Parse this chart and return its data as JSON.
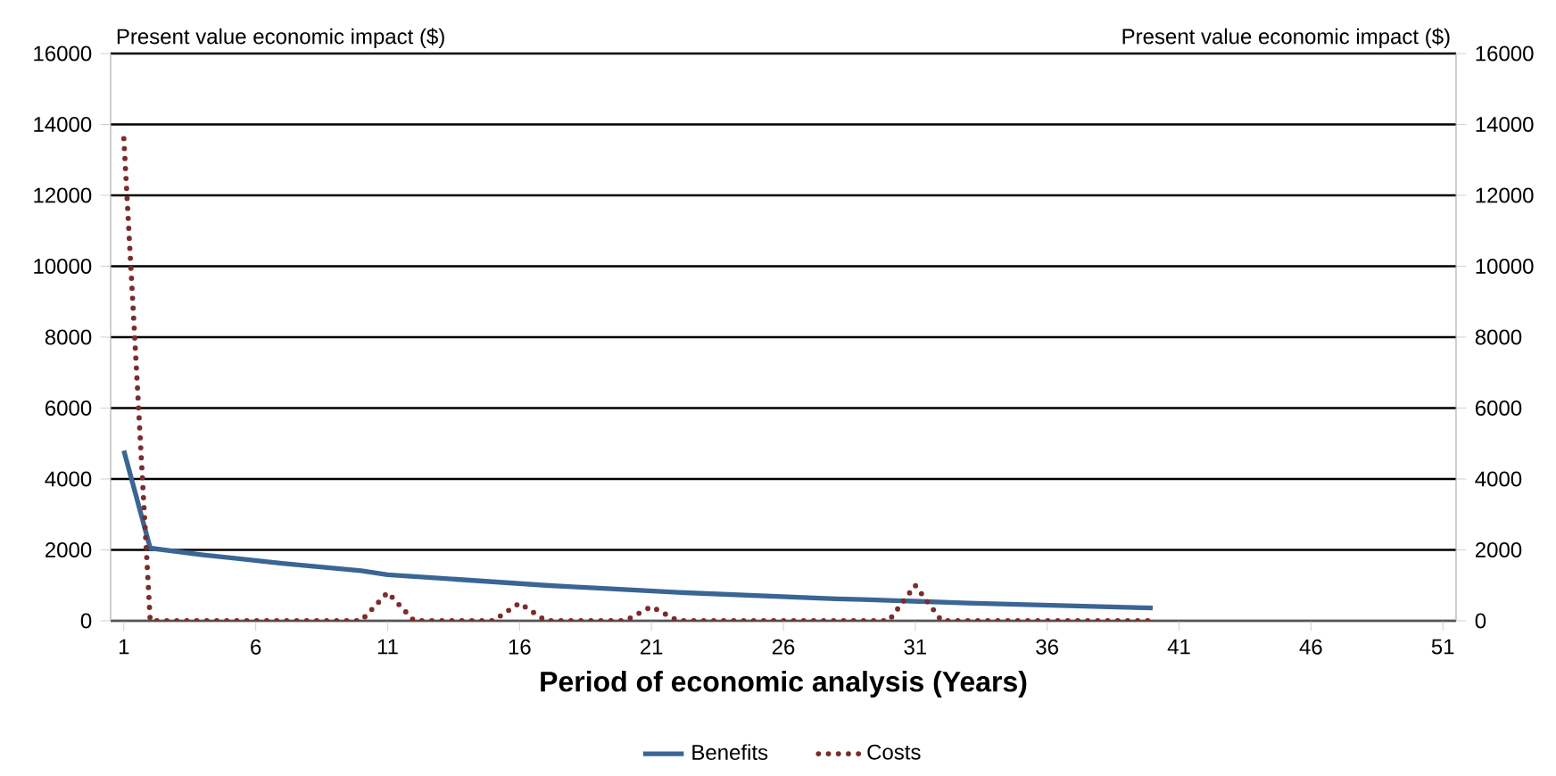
{
  "chart_data": {
    "type": "line",
    "xlabel": "Period of economic analysis (Years)",
    "ylabel": "Present value  economic impact ($)",
    "y2label": "Present value  economic impact ($)",
    "x": [
      1,
      2,
      3,
      4,
      5,
      6,
      7,
      8,
      9,
      10,
      11,
      12,
      13,
      14,
      15,
      16,
      17,
      18,
      19,
      20,
      21,
      22,
      23,
      24,
      25,
      26,
      27,
      28,
      29,
      30,
      31,
      32,
      33,
      34,
      35,
      36,
      37,
      38,
      39,
      40
    ],
    "series": [
      {
        "name": "Benefits",
        "color": "#3a6595",
        "line_style": "solid",
        "values": [
          4800,
          2050,
          1950,
          1860,
          1780,
          1700,
          1620,
          1550,
          1480,
          1410,
          1300,
          1250,
          1200,
          1150,
          1100,
          1050,
          1000,
          960,
          920,
          880,
          840,
          800,
          770,
          740,
          710,
          680,
          650,
          620,
          600,
          575,
          550,
          525,
          500,
          480,
          460,
          440,
          420,
          400,
          380,
          360
        ]
      },
      {
        "name": "Costs",
        "color": "#7b2c2c",
        "line_style": "dotted",
        "values": [
          13600,
          0,
          0,
          0,
          0,
          0,
          0,
          0,
          0,
          0,
          800,
          0,
          0,
          0,
          0,
          500,
          0,
          0,
          0,
          0,
          400,
          0,
          0,
          0,
          0,
          0,
          0,
          0,
          0,
          0,
          1000,
          0,
          0,
          0,
          0,
          0,
          0,
          0,
          0,
          0
        ]
      }
    ],
    "xlim": [
      0.5,
      51.5
    ],
    "xticks": [
      1,
      6,
      11,
      16,
      21,
      26,
      31,
      36,
      41,
      46,
      51
    ],
    "ylim": [
      0,
      16000
    ],
    "yticks": [
      0,
      2000,
      4000,
      6000,
      8000,
      10000,
      12000,
      14000,
      16000
    ],
    "y2lim": [
      0,
      16000
    ],
    "y2ticks": [
      0,
      2000,
      4000,
      6000,
      8000,
      10000,
      12000,
      14000,
      16000
    ],
    "grid": "y",
    "legend": "bottom"
  }
}
